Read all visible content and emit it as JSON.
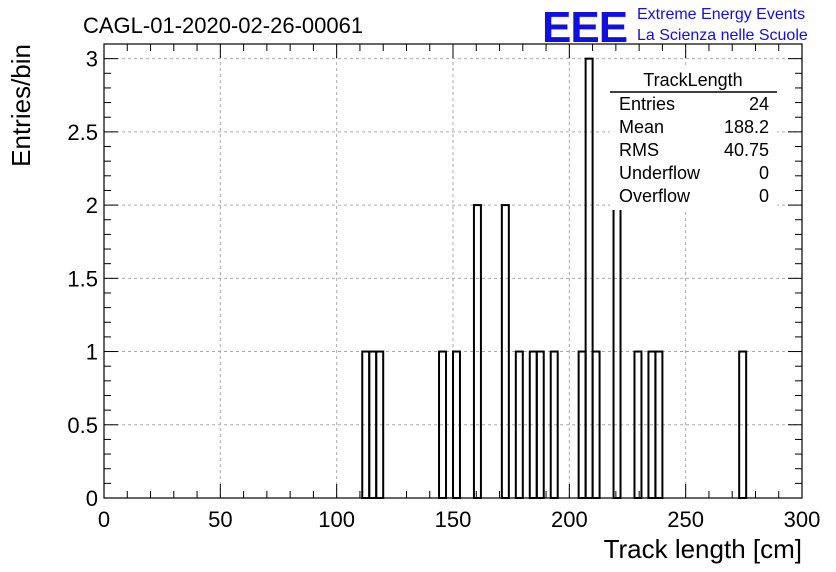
{
  "title": "CAGL-01-2020-02-26-00061",
  "logo": {
    "mark": "EEE",
    "line1": "Extreme Energy Events",
    "line2": "La Scienza nelle Scuole",
    "color": "#1010e0"
  },
  "stats": {
    "name": "TrackLength",
    "rows": [
      {
        "label": "Entries",
        "value": "24"
      },
      {
        "label": "Mean",
        "value": "188.2"
      },
      {
        "label": "RMS",
        "value": "40.75"
      },
      {
        "label": "Underflow",
        "value": "0"
      },
      {
        "label": "Overflow",
        "value": "0"
      }
    ]
  },
  "chart_data": {
    "type": "bar",
    "title": "CAGL-01-2020-02-26-00061",
    "xlabel": "Track length [cm]",
    "ylabel": "Entries/bin",
    "xlim": [
      0,
      300
    ],
    "ylim": [
      0,
      3.1
    ],
    "grid": true,
    "line_color": "#000000",
    "bin_width": 3,
    "bins": [
      {
        "x": 111,
        "count": 1
      },
      {
        "x": 114,
        "count": 1
      },
      {
        "x": 117,
        "count": 1
      },
      {
        "x": 144,
        "count": 1
      },
      {
        "x": 150,
        "count": 1
      },
      {
        "x": 159,
        "count": 2
      },
      {
        "x": 171,
        "count": 2
      },
      {
        "x": 177,
        "count": 1
      },
      {
        "x": 183,
        "count": 1
      },
      {
        "x": 186,
        "count": 1
      },
      {
        "x": 192,
        "count": 1
      },
      {
        "x": 204,
        "count": 1
      },
      {
        "x": 207,
        "count": 3
      },
      {
        "x": 210,
        "count": 1
      },
      {
        "x": 219,
        "count": 2
      },
      {
        "x": 228,
        "count": 1
      },
      {
        "x": 234,
        "count": 1
      },
      {
        "x": 237,
        "count": 1
      },
      {
        "x": 273,
        "count": 1
      }
    ],
    "xticks": [
      "0",
      "50",
      "100",
      "150",
      "200",
      "250",
      "300"
    ],
    "xtick_values": [
      0,
      50,
      100,
      150,
      200,
      250,
      300
    ],
    "yticks": [
      "0",
      "0.5",
      "1",
      "1.5",
      "2",
      "2.5",
      "3"
    ],
    "ytick_values": [
      0,
      0.5,
      1,
      1.5,
      2,
      2.5,
      3
    ]
  }
}
